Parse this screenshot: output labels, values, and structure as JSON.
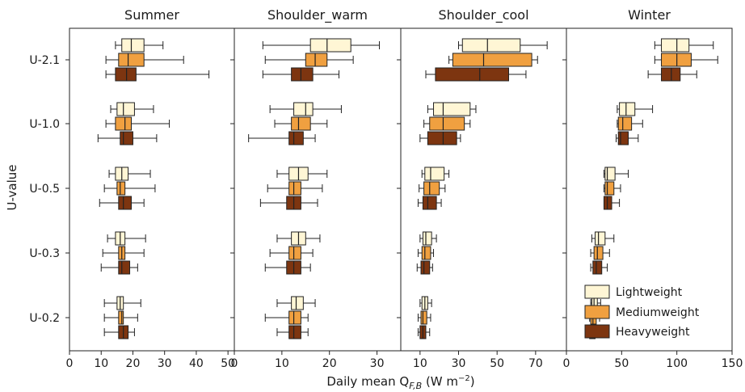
{
  "figure": {
    "xlabel": "Daily mean Q",
    "xlabel_sub": "F,B",
    "xlabel_unit_open": "(W m",
    "xlabel_unit_sup": "−2",
    "xlabel_unit_close": ")",
    "ylabel": "U-value"
  },
  "legend": {
    "placement": "lower-right of Winter panel",
    "entries": [
      {
        "label": "Lightweight",
        "color": "#fff6d5"
      },
      {
        "label": "Mediumweight",
        "color": "#f0a040"
      },
      {
        "label": "Heavyweight",
        "color": "#7d3510"
      }
    ]
  },
  "chart_data": {
    "type": "box",
    "categories": [
      "U-2.1",
      "U-1.0",
      "U-0.5",
      "U-0.3",
      "U-0.2"
    ],
    "series_names": [
      "Lightweight",
      "Mediumweight",
      "Heavyweight"
    ],
    "colors": [
      "#fff6d5",
      "#f0a040",
      "#7d3510"
    ],
    "panels": [
      {
        "title": "Summer",
        "xlim": [
          0,
          52
        ],
        "ticks": [
          0,
          10,
          20,
          30,
          40,
          50
        ],
        "tick_labels": [
          "0",
          "10",
          "20",
          "30",
          "40",
          "50"
        ],
        "boxes": [
          [
            [
              14.5,
              16.5,
              19.5,
              23.5,
              29.5
            ],
            [
              11.5,
              15.5,
              18.5,
              23.5,
              36
            ],
            [
              11.5,
              14.5,
              18,
              21,
              44
            ]
          ],
          [
            [
              13,
              15,
              17,
              20.5,
              26.5
            ],
            [
              11.5,
              14.5,
              17.5,
              19.5,
              31.5
            ],
            [
              9,
              16,
              17,
              20,
              27.5
            ]
          ],
          [
            [
              12.5,
              14.5,
              16.5,
              18.5,
              25.5
            ],
            [
              11,
              15,
              16,
              17.5,
              27
            ],
            [
              9.5,
              15.5,
              17,
              19.5,
              23.5
            ]
          ],
          [
            [
              12,
              14.5,
              16,
              17.5,
              24
            ],
            [
              10.5,
              15.5,
              16.5,
              17.5,
              23.5
            ],
            [
              10,
              15.5,
              16.5,
              19,
              21.5
            ]
          ],
          [
            [
              11,
              15,
              16,
              17,
              22.5
            ],
            [
              11,
              15.5,
              16.5,
              17,
              21.5
            ],
            [
              11,
              15.5,
              17,
              18.5,
              20.5
            ]
          ]
        ]
      },
      {
        "title": "Shoulder_warm",
        "xlim": [
          0,
          35
        ],
        "ticks": [
          0,
          10,
          20,
          30
        ],
        "tick_labels": [
          "0",
          "10",
          "20",
          "30"
        ],
        "boxes": [
          [
            [
              6,
              16,
              19.5,
              24.5,
              30.5
            ],
            [
              6.5,
              15,
              17,
              19.5,
              25
            ],
            [
              6,
              12,
              14,
              16.5,
              22
            ]
          ],
          [
            [
              7.5,
              12.5,
              15,
              16.5,
              22.5
            ],
            [
              8.5,
              12,
              13.5,
              16,
              19.5
            ],
            [
              3,
              11.5,
              12.5,
              14.5,
              17
            ]
          ],
          [
            [
              9,
              11.5,
              13.5,
              15.5,
              19.5
            ],
            [
              7,
              11.5,
              12.5,
              14,
              18.5
            ],
            [
              5.5,
              11,
              12.5,
              14,
              17.5
            ]
          ],
          [
            [
              9,
              12,
              13.5,
              15,
              18
            ],
            [
              7.5,
              11.5,
              12.5,
              14,
              16.5
            ],
            [
              6.5,
              11,
              12.5,
              14,
              16
            ]
          ],
          [
            [
              9,
              12,
              13,
              14.5,
              17
            ],
            [
              6.5,
              11.5,
              12.5,
              14,
              15.5
            ],
            [
              9,
              11.5,
              12.5,
              14,
              15.5
            ]
          ]
        ]
      },
      {
        "title": "Shoulder_cool",
        "xlim": [
          0,
          86
        ],
        "ticks": [
          10,
          30,
          50,
          70
        ],
        "tick_labels": [
          "10",
          "30",
          "50",
          "70"
        ],
        "boxes": [
          [
            [
              30,
              32,
              45,
              62,
              76
            ],
            [
              25,
              27,
              43,
              68,
              71
            ],
            [
              13,
              18,
              41,
              56,
              65
            ]
          ],
          [
            [
              14,
              17,
              22,
              36,
              39
            ],
            [
              12,
              15,
              22,
              33,
              36
            ],
            [
              10,
              14,
              22,
              29,
              31
            ]
          ],
          [
            [
              11,
              12.5,
              15.5,
              22.5,
              25
            ],
            [
              9.5,
              12,
              15,
              20,
              23
            ],
            [
              9,
              11.5,
              14,
              18.5,
              21
            ]
          ],
          [
            [
              10,
              11.5,
              13,
              16,
              18.5
            ],
            [
              9,
              11,
              12.5,
              15.5,
              17
            ],
            [
              8.5,
              10.5,
              12,
              15,
              16.5
            ]
          ],
          [
            [
              10,
              11,
              12.5,
              14,
              16
            ],
            [
              9,
              10.5,
              11.5,
              13.5,
              15.5
            ],
            [
              9,
              10,
              11.5,
              13,
              15
            ]
          ]
        ]
      },
      {
        "title": "Winter",
        "xlim": [
          0,
          150
        ],
        "ticks": [
          0,
          50,
          100,
          150
        ],
        "tick_labels": [
          "0",
          "50",
          "100",
          "150"
        ],
        "boxes": [
          [
            [
              80,
              86,
              100,
              111,
              133
            ],
            [
              80,
              86,
              100,
              113,
              137
            ],
            [
              74,
              86,
              95,
              103,
              118
            ]
          ],
          [
            [
              46,
              48,
              54,
              62,
              78
            ],
            [
              46,
              47,
              51,
              59,
              69
            ],
            [
              45,
              47,
              49,
              56,
              65
            ]
          ],
          [
            [
              34,
              35,
              37,
              44,
              56
            ],
            [
              34,
              35,
              37,
              43,
              49
            ],
            [
              34,
              34,
              37,
              41,
              48
            ]
          ],
          [
            [
              23,
              26,
              29,
              35,
              43
            ],
            [
              22,
              25,
              28,
              33,
              39
            ],
            [
              22,
              24,
              27,
              32,
              37
            ]
          ],
          [
            [
              22,
              23,
              25,
              28,
              31
            ],
            [
              21,
              22,
              24,
              27,
              30
            ],
            [
              20,
              21,
              24,
              26,
              28
            ]
          ]
        ]
      }
    ]
  }
}
